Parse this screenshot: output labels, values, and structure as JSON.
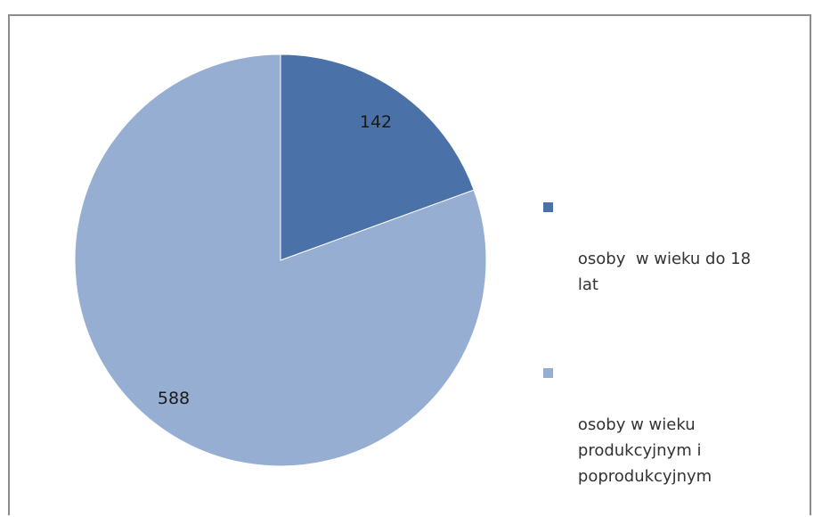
{
  "chart_data": {
    "type": "pie",
    "title": "",
    "categories": [
      "osoby  w wieku do 18 lat",
      "osoby w wieku produkcyjnym i poprodukcyjnym"
    ],
    "values": [
      142,
      588
    ],
    "colors": [
      "#4a72a8",
      "#97aed3"
    ],
    "data_labels": [
      "142",
      "588"
    ],
    "legend_position": "right"
  }
}
